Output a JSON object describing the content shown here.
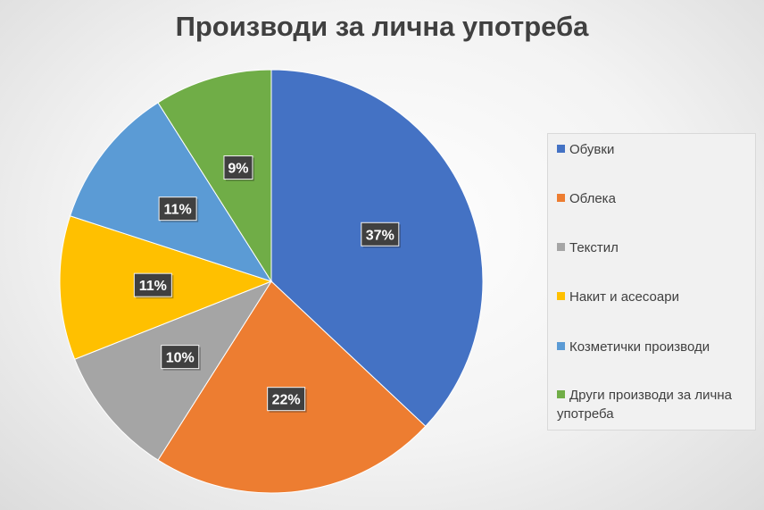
{
  "chart_data": {
    "type": "pie",
    "title": "Производи за лична употреба",
    "legend_position": "right",
    "data_label_format": "percent",
    "slices": [
      {
        "label": "Обувки",
        "value": 37,
        "display": "37%",
        "color": "#4472c4"
      },
      {
        "label": "Облека",
        "value": 22,
        "display": "22%",
        "color": "#ed7d31"
      },
      {
        "label": "Текстил",
        "value": 10,
        "display": "10%",
        "color": "#a5a5a5"
      },
      {
        "label": "Накит и асесоари",
        "value": 11,
        "display": "11%",
        "color": "#ffc000"
      },
      {
        "label": "Козметички производи",
        "value": 11,
        "display": "11%",
        "color": "#5b9bd5"
      },
      {
        "label": "Други производи за лична употреба",
        "value": 9,
        "display": "9%",
        "color": "#70ad47"
      }
    ]
  }
}
